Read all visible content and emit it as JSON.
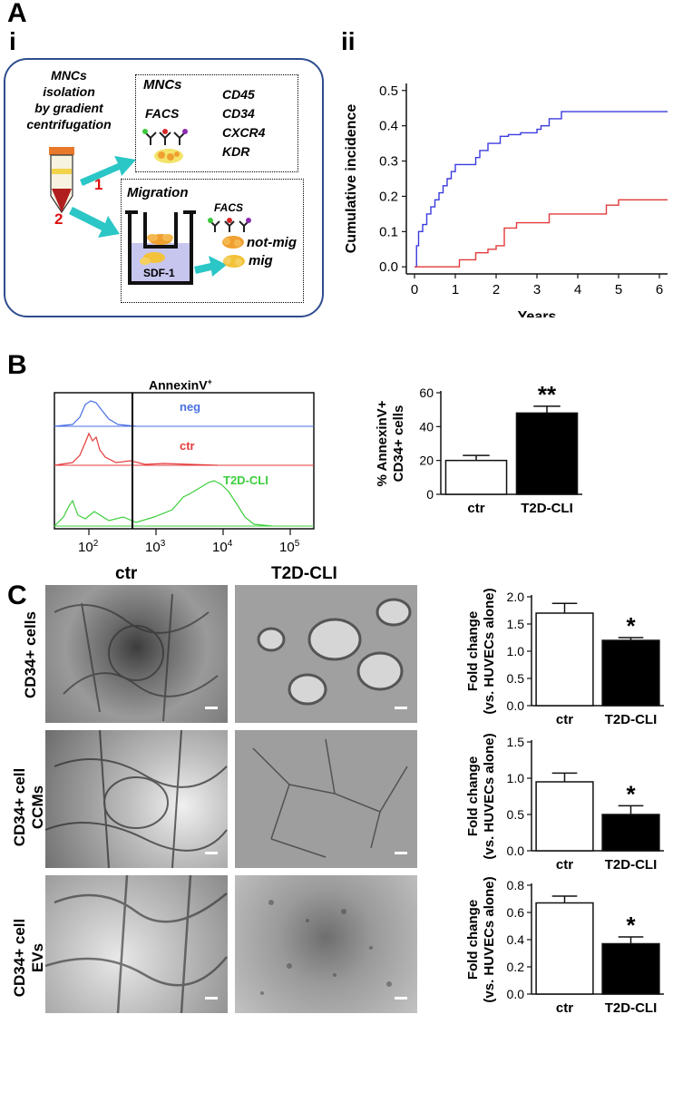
{
  "panel_A": {
    "label": "A",
    "sub_i": "i",
    "sub_ii": "ii",
    "schematic": {
      "isolation_text": [
        "MNCs",
        "isolation",
        "by gradient",
        "centrifugation"
      ],
      "arrow1_label": "1",
      "arrow2_label": "2",
      "mncs_title": "MNCs",
      "facs_label": "FACS",
      "markers": [
        "CD45",
        "CD34",
        "CXCR4",
        "KDR"
      ],
      "migration_title": "Migration",
      "facs2_label": "FACS",
      "sdf_label": "SDF-1",
      "not_mig_label": "not-mig",
      "mig_label": "mig"
    }
  },
  "panel_B": {
    "label": "B",
    "histogram_title": "AnnexinV",
    "histogram_title_sup": "+",
    "traces": [
      {
        "name": "neg",
        "color": "#4a6fe3"
      },
      {
        "name": "ctr",
        "color": "#e53b3b"
      },
      {
        "name": "T2D-CLI",
        "color": "#3ccf3c"
      }
    ],
    "x_ticks": [
      "10",
      "10",
      "10",
      "10"
    ],
    "x_tick_exps": [
      "2",
      "3",
      "4",
      "5"
    ]
  },
  "panel_C": {
    "label": "C",
    "col_ctr": "ctr",
    "col_t2d": "T2D-CLI",
    "row1_label": "CD34+ cells",
    "row2_label_a": "CD34+ cell",
    "row2_label_b": "CCMs",
    "row3_label_a": "CD34+ cell",
    "row3_label_b": "EVs"
  },
  "chart_data": [
    {
      "type": "line",
      "panel": "A-ii",
      "xlabel": "Years",
      "ylabel": "Cumulative incidence",
      "xlim": [
        -0.2,
        6.2
      ],
      "ylim": [
        -0.02,
        0.52
      ],
      "x_ticks": [
        0,
        1,
        2,
        3,
        4,
        5,
        6
      ],
      "y_ticks": [
        0.0,
        0.1,
        0.2,
        0.3,
        0.4,
        0.5
      ],
      "series": [
        {
          "color": "#3a3adf",
          "step": true,
          "x": [
            0,
            0.05,
            0.1,
            0.2,
            0.3,
            0.4,
            0.5,
            0.6,
            0.7,
            0.8,
            0.9,
            1.0,
            1.5,
            1.6,
            1.8,
            2.0,
            2.1,
            2.3,
            2.6,
            3.0,
            3.1,
            3.3,
            3.4,
            3.6,
            6.2
          ],
          "y": [
            0,
            0.06,
            0.1,
            0.12,
            0.15,
            0.17,
            0.19,
            0.21,
            0.23,
            0.25,
            0.27,
            0.29,
            0.31,
            0.33,
            0.35,
            0.35,
            0.37,
            0.375,
            0.38,
            0.39,
            0.4,
            0.42,
            0.42,
            0.44,
            0.44
          ]
        },
        {
          "color": "#e33a3a",
          "step": true,
          "x": [
            0,
            0.9,
            1.1,
            1.5,
            1.8,
            2.0,
            2.2,
            2.5,
            3.0,
            3.3,
            4.4,
            4.7,
            5.0,
            6.2
          ],
          "y": [
            0,
            0,
            0.02,
            0.04,
            0.05,
            0.06,
            0.11,
            0.125,
            0.125,
            0.15,
            0.15,
            0.175,
            0.19,
            0.19
          ]
        }
      ]
    },
    {
      "type": "bar",
      "panel": "B",
      "ylabel": "% AnnexinV+ CD34+ cells",
      "categories": [
        "ctr",
        "T2D-CLI"
      ],
      "values": [
        20,
        48
      ],
      "errors": [
        3,
        4
      ],
      "fills": [
        "#ffffff",
        "#000000"
      ],
      "ylim": [
        0,
        60
      ],
      "y_ticks": [
        0,
        20,
        40,
        60
      ],
      "significance": "**"
    },
    {
      "type": "bar",
      "panel": "C-1",
      "ylabel": "Fold change (vs. HUVECs alone)",
      "categories": [
        "ctr",
        "T2D-CLI"
      ],
      "values": [
        1.7,
        1.2
      ],
      "errors": [
        0.18,
        0.05
      ],
      "fills": [
        "#ffffff",
        "#000000"
      ],
      "ylim": [
        0,
        2.0
      ],
      "y_ticks": [
        0.0,
        0.5,
        1.0,
        1.5,
        2.0
      ],
      "significance": "*"
    },
    {
      "type": "bar",
      "panel": "C-2",
      "ylabel": "Fold change (vs. HUVECs alone)",
      "categories": [
        "ctr",
        "T2D-CLI"
      ],
      "values": [
        0.95,
        0.5
      ],
      "errors": [
        0.12,
        0.12
      ],
      "fills": [
        "#ffffff",
        "#000000"
      ],
      "ylim": [
        0,
        1.5
      ],
      "y_ticks": [
        0.0,
        0.5,
        1.0,
        1.5
      ],
      "significance": "*"
    },
    {
      "type": "bar",
      "panel": "C-3",
      "ylabel": "Fold change (vs. HUVECs alone)",
      "categories": [
        "ctr",
        "T2D-CLI"
      ],
      "values": [
        0.67,
        0.37
      ],
      "errors": [
        0.05,
        0.05
      ],
      "fills": [
        "#ffffff",
        "#000000"
      ],
      "ylim": [
        0,
        0.8
      ],
      "y_ticks": [
        0.0,
        0.2,
        0.4,
        0.6,
        0.8
      ],
      "significance": "*"
    }
  ]
}
